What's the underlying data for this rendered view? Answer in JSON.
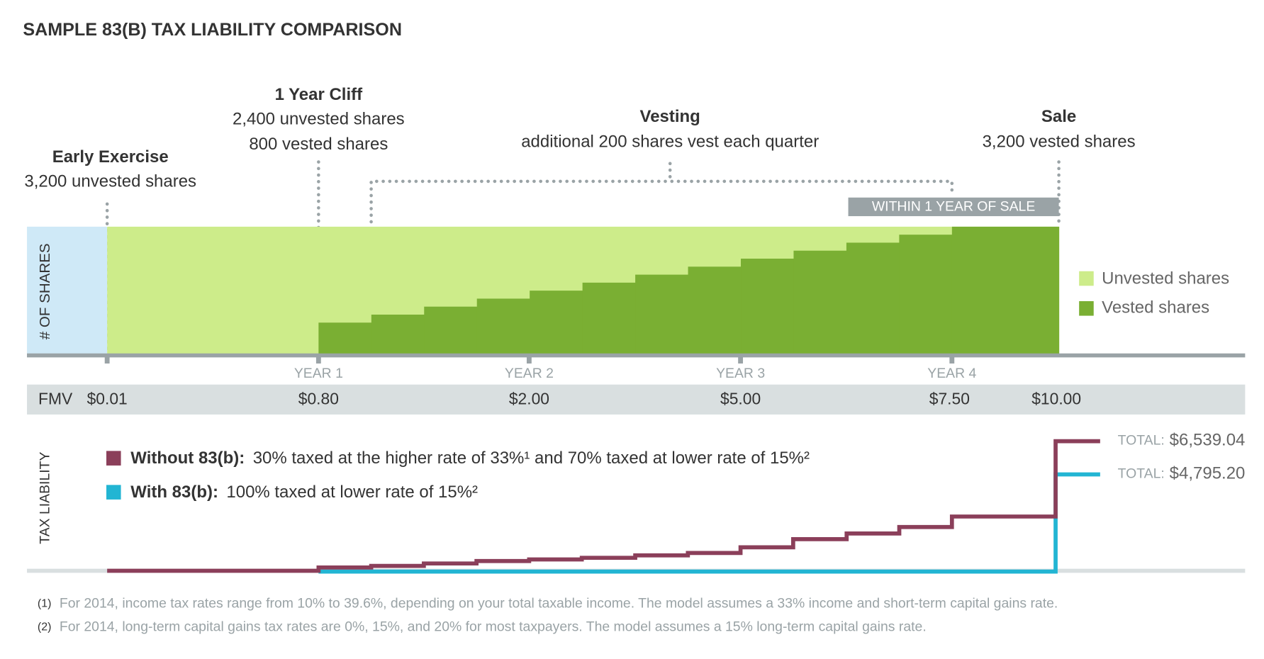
{
  "title": "SAMPLE 83(B) TAX LIABILITY COMPARISON",
  "milestones": [
    {
      "name": "Early Exercise",
      "lines": [
        "3,200 unvested shares"
      ]
    },
    {
      "name": "1 Year Cliff",
      "lines": [
        "2,400 unvested shares",
        "800 vested shares"
      ]
    },
    {
      "name": "Vesting",
      "lines": [
        "additional 200 shares vest each quarter"
      ]
    },
    {
      "name": "Sale",
      "lines": [
        "3,200 vested shares"
      ]
    }
  ],
  "within_label": "WITHIN 1 YEAR OF SALE",
  "shares_axis_label": "# OF SHARES",
  "total_shares": 3200,
  "vested_steps": [
    800,
    1000,
    1200,
    1400,
    1600,
    1800,
    2000,
    2200,
    2400,
    2600,
    2800,
    3000,
    3200
  ],
  "legend": [
    "Unvested shares",
    "Vested shares"
  ],
  "years": [
    "YEAR 1",
    "YEAR 2",
    "YEAR 3",
    "YEAR 4"
  ],
  "fmv_label": "FMV",
  "fmv": [
    "$0.01",
    "$0.80",
    "$2.00",
    "$5.00",
    "$7.50",
    "$10.00"
  ],
  "tax_axis_label": "TAX LIABILITY",
  "tax_legend": [
    {
      "name": "Without 83(b):",
      "text": "30% taxed at the higher rate of 33%¹ and 70% taxed at lower rate of 15%²",
      "color": "#8b3f5a"
    },
    {
      "name": "With 83(b):",
      "text": "100% taxed at lower rate of 15%²",
      "color": "#22b5d3"
    }
  ],
  "totals": [
    {
      "label": "TOTAL:",
      "value": "$6,539.04"
    },
    {
      "label": "TOTAL:",
      "value": "$4,795.20"
    }
  ],
  "footnotes": [
    {
      "mark": "(1)",
      "text": "For 2014, income tax rates range from 10% to 39.6%, depending on your total taxable income. The model assumes a 33% income and short-term capital gains rate."
    },
    {
      "mark": "(2)",
      "text": "For 2014,  long-term capital gains tax rates are 0%, 15%, and 20% for most taxpayers. The model assumes a 15% long-term capital gains rate."
    }
  ]
}
